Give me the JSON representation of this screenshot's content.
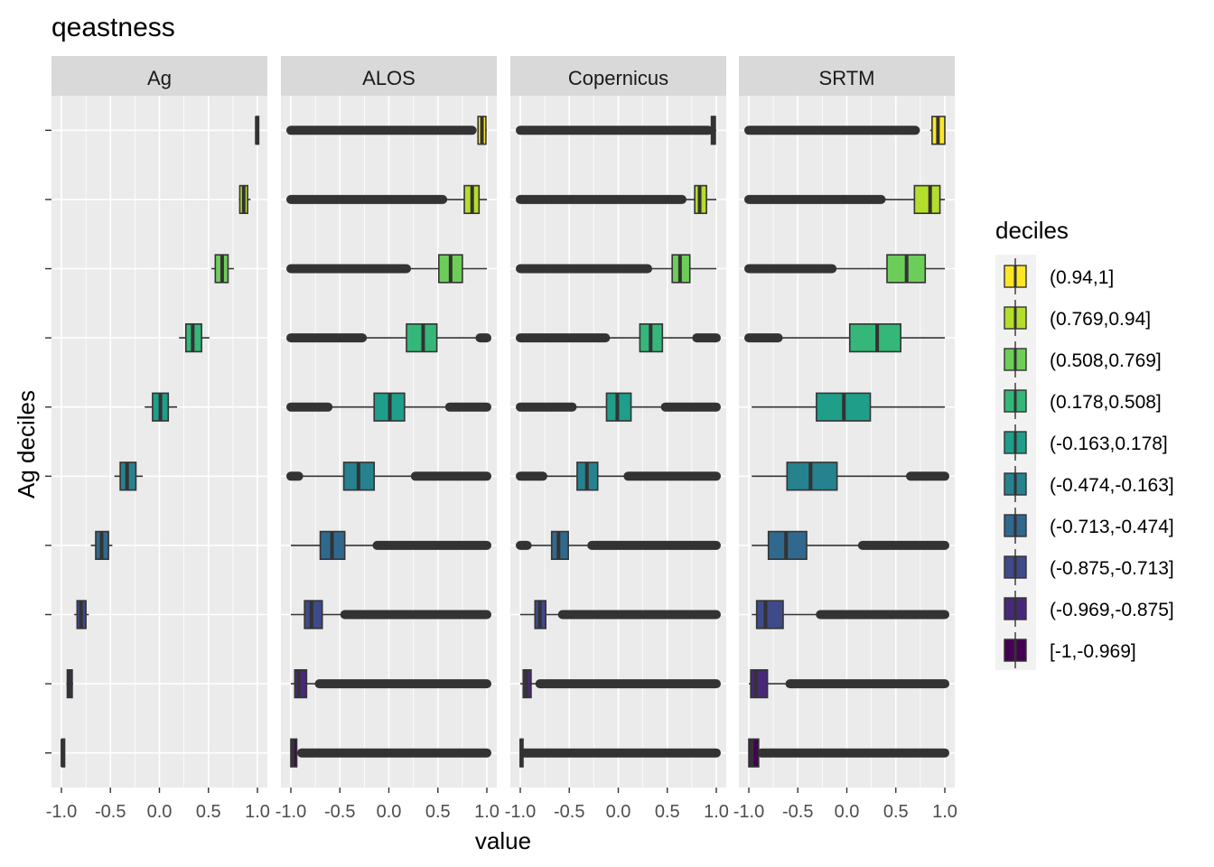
{
  "chart_data": {
    "type": "boxplot",
    "title": "qeastness",
    "xlabel": "value",
    "ylabel": "Ag deciles",
    "xlim": [
      -1.0,
      1.0
    ],
    "x_ticks": [
      "-1.0",
      "-0.5",
      "0.0",
      "0.5",
      "1.0"
    ],
    "x_tick_values": [
      -1.0,
      -0.5,
      0.0,
      0.5,
      1.0
    ],
    "legend": {
      "title": "deciles",
      "position": "right",
      "entries": [
        "(0.94,1]",
        "(0.769,0.94]",
        "(0.508,0.769]",
        "(0.178,0.508]",
        "(-0.163,0.178]",
        "(-0.474,-0.163]",
        "(-0.713,-0.474]",
        "(-0.875,-0.713]",
        "(-0.969,-0.875]",
        "[-1,-0.969]"
      ],
      "colors": [
        "#FDE725",
        "#B4DE2C",
        "#6DCD59",
        "#35B779",
        "#1F9E89",
        "#26828E",
        "#31688E",
        "#3E4A89",
        "#482878",
        "#440154"
      ]
    },
    "panels": [
      {
        "name": "Ag",
        "boxes": [
          {
            "whisker": [
              0.985,
              1.0
            ],
            "q1": 0.985,
            "median": 0.993,
            "q3": 1.0
          },
          {
            "whisker": [
              0.81,
              0.93
            ],
            "q1": 0.82,
            "median": 0.86,
            "q3": 0.9
          },
          {
            "whisker": [
              0.53,
              0.76
            ],
            "q1": 0.57,
            "median": 0.64,
            "q3": 0.7
          },
          {
            "whisker": [
              0.2,
              0.51
            ],
            "q1": 0.27,
            "median": 0.34,
            "q3": 0.43
          },
          {
            "whisker": [
              -0.15,
              0.18
            ],
            "q1": -0.07,
            "median": 0.01,
            "q3": 0.09
          },
          {
            "whisker": [
              -0.46,
              -0.17
            ],
            "q1": -0.4,
            "median": -0.33,
            "q3": -0.24
          },
          {
            "whisker": [
              -0.7,
              -0.48
            ],
            "q1": -0.65,
            "median": -0.59,
            "q3": -0.52
          },
          {
            "whisker": [
              -0.87,
              -0.72
            ],
            "q1": -0.84,
            "median": -0.8,
            "q3": -0.75
          },
          {
            "whisker": [
              -0.95,
              -0.88
            ],
            "q1": -0.94,
            "median": -0.92,
            "q3": -0.89
          },
          {
            "whisker": [
              -1.0,
              -0.97
            ],
            "q1": -0.995,
            "median": -0.99,
            "q3": -0.975
          }
        ]
      },
      {
        "name": "ALOS",
        "boxes": [
          {
            "whisker": [
              0.91,
              1.0
            ],
            "q1": 0.91,
            "median": 0.95,
            "q3": 0.99,
            "outliers": [
              [
                -1.0,
                0.85
              ]
            ]
          },
          {
            "whisker": [
              0.56,
              1.0
            ],
            "q1": 0.77,
            "median": 0.85,
            "q3": 0.92,
            "outliers": [
              [
                -1.0,
                0.55
              ]
            ]
          },
          {
            "whisker": [
              0.19,
              1.0
            ],
            "q1": 0.51,
            "median": 0.63,
            "q3": 0.75,
            "outliers": [
              [
                -1.0,
                0.18
              ]
            ]
          },
          {
            "whisker": [
              -0.25,
              0.93
            ],
            "q1": 0.18,
            "median": 0.35,
            "q3": 0.49,
            "outliers": [
              [
                -1.0,
                -0.27
              ],
              [
                0.93,
                1.0
              ]
            ]
          },
          {
            "whisker": [
              -0.6,
              0.6
            ],
            "q1": -0.15,
            "median": 0.01,
            "q3": 0.16,
            "outliers": [
              [
                -1.0,
                -0.62
              ],
              [
                0.62,
                1.0
              ]
            ]
          },
          {
            "whisker": [
              -0.9,
              0.25
            ],
            "q1": -0.46,
            "median": -0.31,
            "q3": -0.15,
            "outliers": [
              [
                -1.0,
                -0.92
              ],
              [
                0.27,
                1.0
              ]
            ]
          },
          {
            "whisker": [
              -1.0,
              -0.15
            ],
            "q1": -0.7,
            "median": -0.58,
            "q3": -0.45,
            "outliers": [
              [
                -0.12,
                1.0
              ]
            ]
          },
          {
            "whisker": [
              -1.0,
              -0.46
            ],
            "q1": -0.86,
            "median": -0.79,
            "q3": -0.68,
            "outliers": [
              [
                -0.45,
                1.0
              ]
            ]
          },
          {
            "whisker": [
              -1.0,
              -0.72
            ],
            "q1": -0.96,
            "median": -0.92,
            "q3": -0.84,
            "outliers": [
              [
                -0.71,
                1.0
              ]
            ]
          },
          {
            "whisker": [
              -1.0,
              -0.9
            ],
            "q1": -1.0,
            "median": -0.98,
            "q3": -0.94,
            "outliers": [
              [
                -0.89,
                1.0
              ]
            ]
          }
        ]
      },
      {
        "name": "Copernicus",
        "boxes": [
          {
            "whisker": [
              0.95,
              1.0
            ],
            "q1": 0.95,
            "median": 0.97,
            "q3": 0.99,
            "outliers": [
              [
                -1.0,
                0.92
              ]
            ]
          },
          {
            "whisker": [
              0.67,
              1.0
            ],
            "q1": 0.78,
            "median": 0.83,
            "q3": 0.9,
            "outliers": [
              [
                -1.0,
                0.65
              ]
            ]
          },
          {
            "whisker": [
              0.32,
              1.0
            ],
            "q1": 0.55,
            "median": 0.63,
            "q3": 0.73,
            "outliers": [
              [
                -1.0,
                0.3
              ]
            ]
          },
          {
            "whisker": [
              -0.11,
              0.78
            ],
            "q1": 0.22,
            "median": 0.33,
            "q3": 0.45,
            "outliers": [
              [
                -1.0,
                -0.13
              ],
              [
                0.8,
                1.0
              ]
            ]
          },
          {
            "whisker": [
              -0.45,
              0.46
            ],
            "q1": -0.12,
            "median": -0.01,
            "q3": 0.13,
            "outliers": [
              [
                -1.0,
                -0.47
              ],
              [
                0.48,
                1.0
              ]
            ]
          },
          {
            "whisker": [
              -0.75,
              0.1
            ],
            "q1": -0.42,
            "median": -0.32,
            "q3": -0.21,
            "outliers": [
              [
                -1.0,
                -0.77
              ],
              [
                0.1,
                1.0
              ]
            ]
          },
          {
            "whisker": [
              -0.91,
              -0.27
            ],
            "q1": -0.68,
            "median": -0.61,
            "q3": -0.51,
            "outliers": [
              [
                -1.0,
                -0.93
              ],
              [
                -0.27,
                1.0
              ]
            ]
          },
          {
            "whisker": [
              -1.0,
              -0.58
            ],
            "q1": -0.85,
            "median": -0.8,
            "q3": -0.74,
            "outliers": [
              [
                -0.57,
                1.0
              ]
            ]
          },
          {
            "whisker": [
              -1.0,
              -0.82
            ],
            "q1": -0.97,
            "median": -0.94,
            "q3": -0.89,
            "outliers": [
              [
                -0.8,
                1.0
              ]
            ]
          },
          {
            "whisker": [
              -1.0,
              -0.97
            ],
            "q1": -1.0,
            "median": -0.99,
            "q3": -0.98,
            "outliers": [
              [
                -0.96,
                1.0
              ]
            ]
          }
        ]
      },
      {
        "name": "SRTM",
        "boxes": [
          {
            "whisker": [
              0.85,
              1.0
            ],
            "q1": 0.87,
            "median": 0.93,
            "q3": 1.0,
            "outliers": [
              [
                -1.0,
                0.7
              ]
            ]
          },
          {
            "whisker": [
              0.35,
              1.0
            ],
            "q1": 0.69,
            "median": 0.85,
            "q3": 0.95,
            "outliers": [
              [
                -1.0,
                0.35
              ]
            ]
          },
          {
            "whisker": [
              -0.15,
              1.0
            ],
            "q1": 0.41,
            "median": 0.61,
            "q3": 0.8,
            "outliers": [
              [
                -1.0,
                -0.15
              ]
            ]
          },
          {
            "whisker": [
              -0.67,
              1.0
            ],
            "q1": 0.03,
            "median": 0.31,
            "q3": 0.55,
            "outliers": [
              [
                -1.0,
                -0.7
              ]
            ]
          },
          {
            "whisker": [
              -0.97,
              1.0
            ],
            "q1": -0.31,
            "median": -0.03,
            "q3": 0.24,
            "outliers": []
          },
          {
            "whisker": [
              -0.97,
              0.64
            ],
            "q1": -0.61,
            "median": -0.37,
            "q3": -0.1,
            "outliers": [
              [
                0.65,
                1.0
              ]
            ]
          },
          {
            "whisker": [
              -0.97,
              0.15
            ],
            "q1": -0.8,
            "median": -0.62,
            "q3": -0.41,
            "outliers": [
              [
                0.16,
                1.0
              ]
            ]
          },
          {
            "whisker": [
              -0.97,
              -0.26
            ],
            "q1": -0.92,
            "median": -0.83,
            "q3": -0.65,
            "outliers": [
              [
                -0.27,
                1.0
              ]
            ]
          },
          {
            "whisker": [
              -1.0,
              -0.57
            ],
            "q1": -0.98,
            "median": -0.93,
            "q3": -0.81,
            "outliers": [
              [
                -0.58,
                1.0
              ]
            ]
          },
          {
            "whisker": [
              -1.0,
              -0.88
            ],
            "q1": -1.0,
            "median": -0.97,
            "q3": -0.9,
            "outliers": [
              [
                -0.87,
                1.0
              ]
            ]
          }
        ]
      }
    ]
  }
}
